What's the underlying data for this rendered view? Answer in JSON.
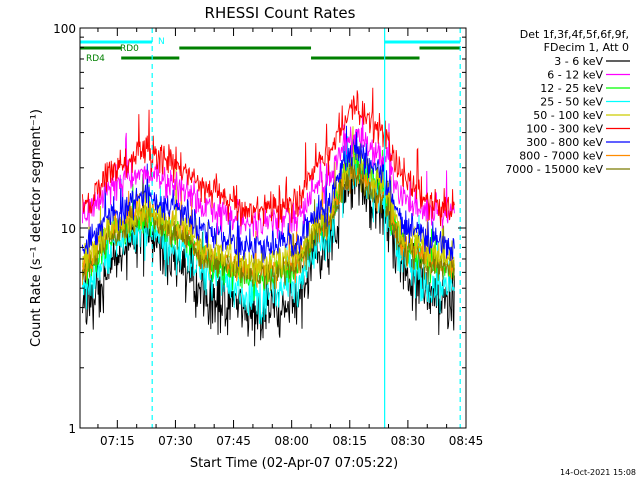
{
  "chart_data": {
    "type": "line",
    "title": "RHESSI Count Rates",
    "xlabel": "Start Time (02-Apr-07 07:05:22)",
    "ylabel": "Count Rate (s⁻¹ detector segment⁻¹)",
    "yscale": "log",
    "ylim": [
      1,
      100
    ],
    "xlim": [
      "07:05:22",
      "08:45:00"
    ],
    "x_ticks": [
      "07:15",
      "07:30",
      "07:45",
      "08:00",
      "08:15",
      "08:30",
      "08:45"
    ],
    "y_ticks": [
      "1",
      "10",
      "100"
    ],
    "grid": false,
    "legend": {
      "placement": "right",
      "header": [
        "Det 1f,3f,4f,5f,6f,9f,",
        "FDecim 1, Att 0"
      ]
    },
    "series": [
      {
        "name": "3 - 6 keV",
        "color": "#000000",
        "x": [
          "07:06",
          "07:15",
          "07:22",
          "07:30",
          "07:40",
          "07:50",
          "08:00",
          "08:08",
          "08:16",
          "08:22",
          "08:30",
          "08:36",
          "08:42"
        ],
        "y": [
          4.0,
          7.0,
          9.5,
          7.0,
          4.5,
          3.8,
          4.0,
          7.5,
          18,
          13,
          6.0,
          4.5,
          4.0
        ]
      },
      {
        "name": "6 - 12 keV",
        "color": "#ff00ff",
        "x": [
          "07:06",
          "07:15",
          "07:22",
          "07:30",
          "07:40",
          "07:50",
          "08:00",
          "08:08",
          "08:16",
          "08:22",
          "08:30",
          "08:36",
          "08:42"
        ],
        "y": [
          12,
          17,
          19,
          16,
          12,
          10.5,
          11,
          17,
          29,
          24,
          14,
          12,
          11.5
        ]
      },
      {
        "name": "12 - 25 keV",
        "color": "#00ff00",
        "x": [
          "07:06",
          "07:15",
          "07:22",
          "07:30",
          "07:40",
          "07:50",
          "08:00",
          "08:08",
          "08:16",
          "08:22",
          "08:30",
          "08:36",
          "08:42"
        ],
        "y": [
          6.0,
          9.5,
          11,
          9.5,
          6.5,
          5.5,
          6.0,
          10,
          22,
          17,
          8.0,
          6.5,
          6.0
        ]
      },
      {
        "name": "25 - 50 keV",
        "color": "#00ffff",
        "x": [
          "07:06",
          "07:15",
          "07:22",
          "07:30",
          "07:40",
          "07:50",
          "08:00",
          "08:08",
          "08:16",
          "08:22",
          "08:30",
          "08:36",
          "08:42"
        ],
        "y": [
          5.0,
          8.5,
          10,
          8.0,
          5.5,
          4.5,
          5.0,
          8.5,
          20,
          15,
          6.5,
          5.0,
          4.8
        ]
      },
      {
        "name": "50 - 100 keV",
        "color": "#cccc00",
        "x": [
          "07:06",
          "07:15",
          "07:22",
          "07:30",
          "07:40",
          "07:50",
          "08:00",
          "08:08",
          "08:16",
          "08:22",
          "08:30",
          "08:36",
          "08:42"
        ],
        "y": [
          7.0,
          10.5,
          12,
          10.5,
          7.5,
          6.5,
          7.0,
          11,
          23,
          18,
          9.0,
          7.5,
          7.0
        ]
      },
      {
        "name": "100 - 300 keV",
        "color": "#ff0000",
        "x": [
          "07:06",
          "07:15",
          "07:22",
          "07:30",
          "07:40",
          "07:50",
          "08:00",
          "08:08",
          "08:16",
          "08:22",
          "08:30",
          "08:36",
          "08:42"
        ],
        "y": [
          13,
          20,
          24,
          21,
          15,
          12,
          13,
          22,
          40,
          33,
          17,
          13,
          12.5
        ]
      },
      {
        "name": "300 - 800 keV",
        "color": "#0000ff",
        "x": [
          "07:06",
          "07:15",
          "07:22",
          "07:30",
          "07:40",
          "07:50",
          "08:00",
          "08:08",
          "08:16",
          "08:22",
          "08:30",
          "08:36",
          "08:42"
        ],
        "y": [
          8.0,
          12,
          14.5,
          12.5,
          9.0,
          8.0,
          8.5,
          12.5,
          25,
          20,
          10,
          8.5,
          8.0
        ]
      },
      {
        "name": "800 - 7000 keV",
        "color": "#ff8c00",
        "x": [
          "07:06",
          "07:15",
          "07:22",
          "07:30",
          "07:40",
          "07:50",
          "08:00",
          "08:08",
          "08:16",
          "08:22",
          "08:30",
          "08:36",
          "08:42"
        ],
        "y": [
          6.5,
          10,
          12,
          10,
          7.0,
          6.0,
          6.5,
          10.5,
          19,
          15,
          8.0,
          6.8,
          6.5
        ]
      },
      {
        "name": "7000 - 15000 keV",
        "color": "#7a7a00",
        "x": [
          "07:06",
          "07:15",
          "07:22",
          "07:30",
          "07:40",
          "07:50",
          "08:00",
          "08:08",
          "08:16",
          "08:22",
          "08:30",
          "08:36",
          "08:42"
        ],
        "y": [
          6.2,
          9.5,
          11.5,
          9.5,
          6.8,
          5.8,
          6.2,
          10,
          18.5,
          14.5,
          7.6,
          6.5,
          6.2
        ]
      }
    ],
    "flag_bars": [
      {
        "label": "N",
        "color": "#00ffff",
        "segments": [
          [
            "07:05:22",
            "07:24:00"
          ],
          [
            "08:24:00",
            "08:43:30"
          ]
        ]
      },
      {
        "label": "RD0",
        "color": "#008000",
        "segments": [
          [
            "07:05:22",
            "07:16:00"
          ],
          [
            "07:31:00",
            "08:05:00"
          ],
          [
            "08:33:00",
            "08:43:30"
          ]
        ]
      },
      {
        "label": "RD4",
        "color": "#008000",
        "segments": [
          [
            "07:16:00",
            "07:31:00"
          ],
          [
            "08:05:00",
            "08:33:00"
          ]
        ]
      }
    ],
    "vlines": [
      {
        "x": "07:24:00",
        "style": "dashed",
        "color": "#00ffff"
      },
      {
        "x": "08:24:00",
        "style": "solid",
        "color": "#00ffff"
      },
      {
        "x": "08:43:30",
        "style": "dashed",
        "color": "#00ffff"
      }
    ]
  },
  "timestamp": "14-Oct-2021 15:08"
}
